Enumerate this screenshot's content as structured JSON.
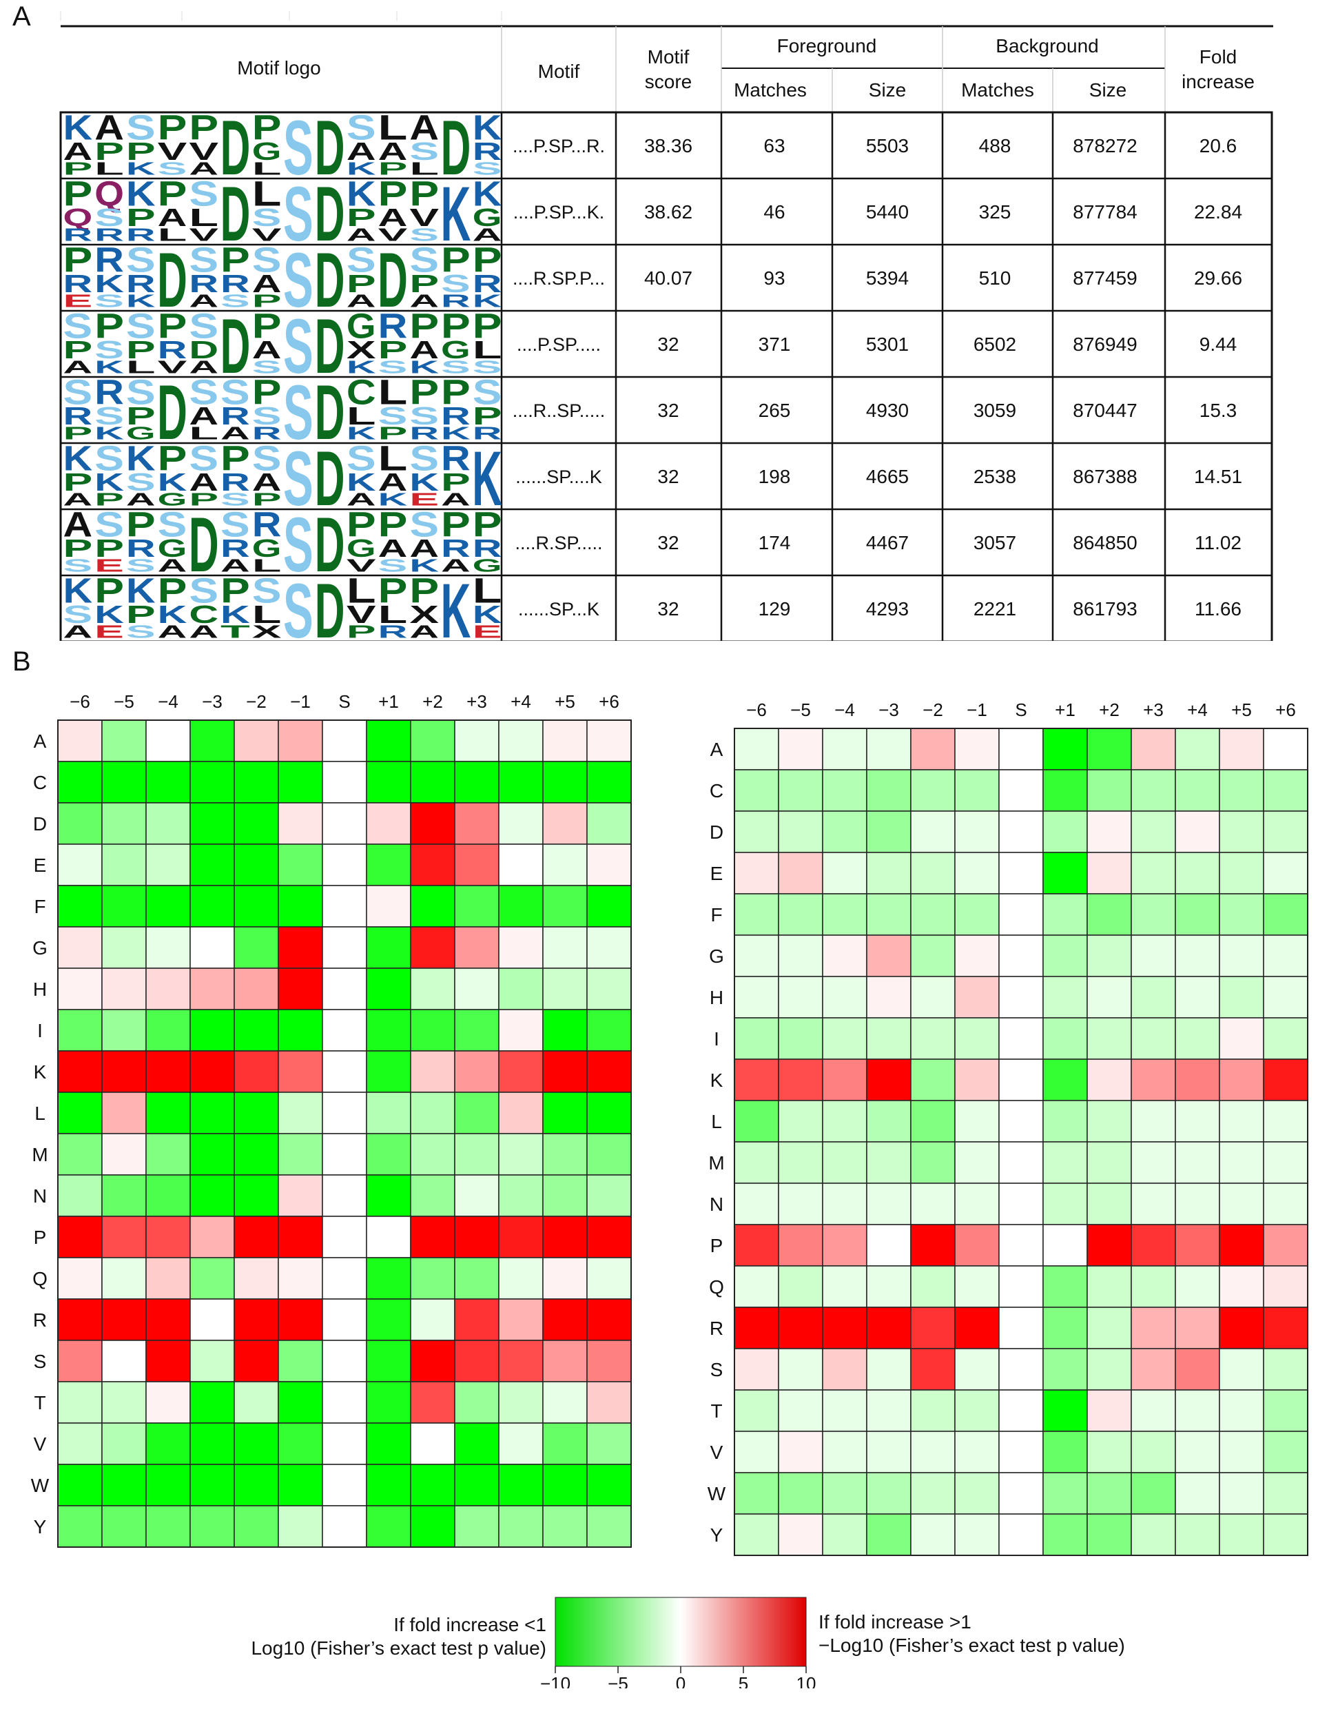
{
  "panel_a_label": "A",
  "panel_b_label": "B",
  "table": {
    "headers": {
      "logo": "Motif logo",
      "motif": "Motif",
      "score": [
        "Motif",
        "score"
      ],
      "foreground": "Foreground",
      "background": "Background",
      "matches": "Matches",
      "size": "Size",
      "fold": [
        "Fold",
        "increase"
      ]
    },
    "rows": [
      {
        "motif": "....P.SP...R.",
        "score": "38.36",
        "fg_matches": "63",
        "fg_size": "5503",
        "bg_matches": "488",
        "bg_size": "878272",
        "fold": "20.6"
      },
      {
        "motif": "....P.SP...K.",
        "score": "38.62",
        "fg_matches": "46",
        "fg_size": "5440",
        "bg_matches": "325",
        "bg_size": "877784",
        "fold": "22.84"
      },
      {
        "motif": "....R.SP.P...",
        "score": "40.07",
        "fg_matches": "93",
        "fg_size": "5394",
        "bg_matches": "510",
        "bg_size": "877459",
        "fold": "29.66"
      },
      {
        "motif": "....P.SP.....",
        "score": "32",
        "fg_matches": "371",
        "fg_size": "5301",
        "bg_matches": "6502",
        "bg_size": "876949",
        "fold": "9.44"
      },
      {
        "motif": "....R..SP.....",
        "score": "32",
        "fg_matches": "265",
        "fg_size": "4930",
        "bg_matches": "3059",
        "bg_size": "870447",
        "fold": "15.3"
      },
      {
        "motif": "......SP....K",
        "score": "32",
        "fg_matches": "198",
        "fg_size": "4665",
        "bg_matches": "2538",
        "bg_size": "867388",
        "fold": "14.51"
      },
      {
        "motif": "....R.SP.....",
        "score": "32",
        "fg_matches": "174",
        "fg_size": "4467",
        "bg_matches": "3057",
        "bg_size": "864850",
        "fold": "11.02"
      },
      {
        "motif": "......SP...K",
        "score": "32",
        "fg_matches": "129",
        "fg_size": "4293",
        "bg_matches": "2221",
        "bg_size": "861793",
        "fold": "11.66"
      }
    ],
    "logos": [
      [
        [
          "K",
          "A",
          "P"
        ],
        [
          "A",
          "P",
          "L"
        ],
        [
          "S",
          "P",
          "K"
        ],
        [
          "P",
          "V",
          "S"
        ],
        [
          "P",
          "V",
          "A"
        ],
        [
          "D"
        ],
        [
          "P",
          "G",
          "L"
        ],
        [
          "S"
        ],
        [
          "D"
        ],
        [
          "S",
          "A",
          "K"
        ],
        [
          "L",
          "A",
          "P"
        ],
        [
          "A",
          "S",
          "L"
        ],
        [
          "D"
        ],
        [
          "K",
          "R",
          "S"
        ]
      ],
      [
        [
          "P",
          "Q",
          "R"
        ],
        [
          "Q",
          "S",
          "R"
        ],
        [
          "K",
          "P",
          "R"
        ],
        [
          "P",
          "A",
          "L"
        ],
        [
          "S",
          "L",
          "V"
        ],
        [
          "D"
        ],
        [
          "L",
          "S",
          "V"
        ],
        [
          "S"
        ],
        [
          "D"
        ],
        [
          "K",
          "P",
          "A"
        ],
        [
          "P",
          "A",
          "V"
        ],
        [
          "P",
          "V",
          "S"
        ],
        [
          "K"
        ],
        [
          "K",
          "G",
          "A"
        ]
      ],
      [
        [
          "P",
          "R",
          "E"
        ],
        [
          "R",
          "K",
          "S"
        ],
        [
          "S",
          "R",
          "K"
        ],
        [
          "D"
        ],
        [
          "S",
          "R",
          "A"
        ],
        [
          "P",
          "R",
          "S"
        ],
        [
          "S",
          "A",
          "P"
        ],
        [
          "S"
        ],
        [
          "D"
        ],
        [
          "S",
          "P",
          "A"
        ],
        [
          "D"
        ],
        [
          "S",
          "P",
          "A"
        ],
        [
          "P",
          "S",
          "R"
        ],
        [
          "P",
          "R",
          "K"
        ]
      ],
      [
        [
          "S",
          "P",
          "A"
        ],
        [
          "P",
          "S",
          "K"
        ],
        [
          "S",
          "P",
          "L"
        ],
        [
          "P",
          "R",
          "V"
        ],
        [
          "S",
          "D",
          "A"
        ],
        [
          "D"
        ],
        [
          "P",
          "A",
          "S"
        ],
        [
          "S"
        ],
        [
          "D"
        ],
        [
          "G",
          "X",
          "K"
        ],
        [
          "R",
          "P",
          "S"
        ],
        [
          "P",
          "A",
          "K"
        ],
        [
          "P",
          "G",
          "S"
        ],
        [
          "P",
          "L",
          "S"
        ]
      ],
      [
        [
          "S",
          "R",
          "P"
        ],
        [
          "R",
          "S",
          "K"
        ],
        [
          "S",
          "P",
          "G"
        ],
        [
          "D"
        ],
        [
          "S",
          "A",
          "L"
        ],
        [
          "S",
          "R",
          "A"
        ],
        [
          "P",
          "S",
          "R"
        ],
        [
          "S"
        ],
        [
          "D"
        ],
        [
          "C",
          "L",
          "K"
        ],
        [
          "L",
          "S",
          "P"
        ],
        [
          "P",
          "S",
          "R"
        ],
        [
          "P",
          "R",
          "K"
        ],
        [
          "S",
          "P",
          "R"
        ]
      ],
      [
        [
          "K",
          "P",
          "A"
        ],
        [
          "S",
          "K",
          "P"
        ],
        [
          "K",
          "S",
          "A"
        ],
        [
          "P",
          "K",
          "G"
        ],
        [
          "S",
          "A",
          "P"
        ],
        [
          "P",
          "R",
          "S"
        ],
        [
          "S",
          "A",
          "P"
        ],
        [
          "S"
        ],
        [
          "D"
        ],
        [
          "S",
          "K",
          "A"
        ],
        [
          "L",
          "A",
          "K"
        ],
        [
          "S",
          "K",
          "E"
        ],
        [
          "R",
          "P",
          "A"
        ],
        [
          "K"
        ]
      ],
      [
        [
          "A",
          "P",
          "S"
        ],
        [
          "S",
          "P",
          "E"
        ],
        [
          "P",
          "R",
          "S"
        ],
        [
          "S",
          "G",
          "A"
        ],
        [
          "D"
        ],
        [
          "S",
          "R",
          "A"
        ],
        [
          "R",
          "G",
          "L"
        ],
        [
          "S"
        ],
        [
          "D"
        ],
        [
          "P",
          "G",
          "V"
        ],
        [
          "P",
          "A",
          "S"
        ],
        [
          "S",
          "A",
          "K"
        ],
        [
          "P",
          "R",
          "A"
        ],
        [
          "P",
          "R",
          "G"
        ]
      ],
      [
        [
          "K",
          "S",
          "A"
        ],
        [
          "P",
          "K",
          "E"
        ],
        [
          "K",
          "P",
          "S"
        ],
        [
          "P",
          "K",
          "A"
        ],
        [
          "S",
          "C",
          "A"
        ],
        [
          "P",
          "K",
          "T"
        ],
        [
          "S",
          "L",
          "X"
        ],
        [
          "S"
        ],
        [
          "D"
        ],
        [
          "L",
          "V",
          "P"
        ],
        [
          "P",
          "L",
          "R"
        ],
        [
          "P",
          "X",
          "A"
        ],
        [
          "K"
        ],
        [
          "L",
          "K",
          "E"
        ]
      ]
    ]
  },
  "heatmaps": {
    "columns": [
      "−6",
      "−5",
      "−4",
      "−3",
      "−2",
      "−1",
      "S",
      "+1",
      "+2",
      "+3",
      "+4",
      "+5",
      "+6"
    ],
    "rows": [
      "A",
      "C",
      "D",
      "E",
      "F",
      "G",
      "H",
      "I",
      "K",
      "L",
      "M",
      "N",
      "P",
      "Q",
      "R",
      "S",
      "T",
      "V",
      "W",
      "Y"
    ],
    "left_values": [
      [
        1,
        -4,
        0,
        -9,
        2,
        3,
        0,
        -10,
        -6,
        -1,
        -1,
        0.6,
        0.5
      ],
      [
        -10,
        -10,
        -10,
        -10,
        -10,
        -10,
        0,
        -10,
        -10,
        -10,
        -10,
        -10,
        -10
      ],
      [
        -6,
        -4,
        -3,
        -10,
        -10,
        1,
        0,
        1.5,
        10,
        5,
        -1,
        2,
        -3
      ],
      [
        -1,
        -3,
        -2,
        -10,
        -10,
        -6,
        0,
        -8,
        9,
        6,
        0,
        -1,
        0.5
      ],
      [
        -10,
        -9,
        -10,
        -10,
        -10,
        -10,
        0,
        0.5,
        -10,
        -7,
        -9,
        -7,
        -10
      ],
      [
        1,
        -2,
        -1,
        0,
        -7,
        10,
        0,
        -9,
        9,
        4,
        0.5,
        -1,
        -1
      ],
      [
        0.5,
        1,
        1.5,
        3,
        3.5,
        10,
        0,
        -10,
        -2,
        -1,
        -3,
        -2,
        -2
      ],
      [
        -6,
        -4,
        -7,
        -10,
        -10,
        -10,
        0,
        -9,
        -8,
        -7,
        0.5,
        -10,
        -8
      ],
      [
        10,
        10,
        10,
        10,
        8,
        6,
        0,
        -9,
        2,
        4,
        7,
        10,
        10
      ],
      [
        -10,
        3,
        -10,
        -10,
        -10,
        -2,
        0,
        -3,
        -3,
        -6,
        2,
        -10,
        -10
      ],
      [
        -5,
        0.5,
        -5,
        -10,
        -10,
        -4,
        0,
        -6,
        -3,
        -3,
        -2,
        -4,
        -5
      ],
      [
        -3,
        -6,
        -7,
        -10,
        -10,
        1.5,
        0,
        -10,
        -4,
        -1,
        -3,
        -4,
        -3
      ],
      [
        10,
        7,
        7,
        3,
        10,
        10,
        0,
        0,
        10,
        10,
        9,
        10,
        10
      ],
      [
        0.5,
        -1,
        2,
        -5,
        1,
        0.5,
        0,
        -9,
        -5,
        -5,
        -1,
        0.5,
        -1
      ],
      [
        10,
        10,
        10,
        0,
        10,
        10,
        0,
        -9,
        -1,
        8,
        3,
        10,
        10
      ],
      [
        5,
        0,
        10,
        -2,
        10,
        -5,
        0,
        -9,
        10,
        8,
        7,
        4,
        5
      ],
      [
        -2,
        -2,
        0.5,
        -10,
        -2,
        -10,
        0,
        -9,
        7,
        -4,
        -2,
        -1,
        2
      ],
      [
        -2,
        -3,
        -9,
        -10,
        -10,
        -8,
        0,
        -10,
        0,
        -10,
        -1,
        -6,
        -4
      ],
      [
        -10,
        -10,
        -10,
        -10,
        -10,
        -10,
        0,
        -10,
        -10,
        -10,
        -10,
        -10,
        -10
      ],
      [
        -6,
        -6,
        -6,
        -6,
        -6,
        -2,
        0,
        -8,
        -10,
        -4,
        -4,
        -4,
        -4
      ]
    ],
    "right_values": [
      [
        -1,
        0.5,
        -1,
        -1,
        3,
        0.5,
        0,
        -10,
        -8,
        2,
        -2,
        1,
        0
      ],
      [
        -3,
        -3,
        -3,
        -4,
        -3,
        -3,
        0,
        -8,
        -4,
        -3,
        -3,
        -3,
        -3
      ],
      [
        -2,
        -2,
        -3,
        -4,
        -1,
        -1,
        0,
        -3,
        0.5,
        -2,
        0.5,
        -2,
        -2
      ],
      [
        1,
        2,
        -1,
        -2,
        -2,
        -1,
        0,
        -10,
        1,
        -2,
        -2,
        -2,
        -1
      ],
      [
        -3,
        -3,
        -3,
        -3,
        -3,
        -3,
        0,
        -3,
        -5,
        -3,
        -4,
        -3,
        -5
      ],
      [
        -1,
        -1,
        0.5,
        3,
        -3,
        0.5,
        0,
        -3,
        -2,
        -1,
        -1,
        -1,
        -1
      ],
      [
        -1,
        -1,
        -1,
        0.5,
        -1,
        2,
        0,
        -2,
        -1,
        -2,
        -1,
        -2,
        -1
      ],
      [
        -3,
        -3,
        -2,
        -2,
        -2,
        -2,
        0,
        -3,
        -2,
        -2,
        -2,
        0.5,
        -2
      ],
      [
        7,
        7,
        5,
        10,
        -4,
        2,
        0,
        -8,
        1,
        4,
        5,
        4,
        9
      ],
      [
        -6,
        -2,
        -2,
        -3,
        -5,
        -1,
        0,
        -3,
        -2,
        -1,
        -1,
        -1,
        -1
      ],
      [
        -2,
        -2,
        -2,
        -2,
        -4,
        -1,
        0,
        -2,
        -2,
        -1,
        -1,
        -1,
        -1
      ],
      [
        -1,
        -1,
        -1,
        -1,
        -1,
        -1,
        0,
        -2,
        -2,
        -1,
        -1,
        -1,
        -1
      ],
      [
        8,
        5,
        4,
        0,
        10,
        5,
        0,
        0,
        10,
        8,
        6,
        10,
        4
      ],
      [
        -1,
        -2,
        -1,
        -1,
        -2,
        -1,
        0,
        -5,
        -2,
        -2,
        -1,
        0.5,
        1
      ],
      [
        10,
        10,
        10,
        10,
        8,
        10,
        0,
        -5,
        -2,
        3,
        3,
        10,
        9
      ],
      [
        1,
        -1,
        2,
        -1,
        8,
        -1,
        0,
        -4,
        -2,
        3,
        5,
        -1,
        -2
      ],
      [
        -2,
        -1,
        -1,
        -1,
        -2,
        -2,
        0,
        -10,
        1,
        -1,
        -1,
        -1,
        -3
      ],
      [
        -1,
        0.5,
        -1,
        -1,
        -1,
        -1,
        0,
        -6,
        -2,
        -2,
        -1,
        -1,
        -3
      ],
      [
        -4,
        -4,
        -3,
        -3,
        -2,
        -2,
        0,
        -4,
        -4,
        -5,
        -1,
        -1,
        -2
      ],
      [
        -2,
        0.5,
        -2,
        -5,
        -1,
        -1,
        0,
        -5,
        -5,
        -2,
        -2,
        -2,
        -2
      ]
    ]
  },
  "legend": {
    "left_line1": "If fold increase <1",
    "left_line2": "Log10 (Fisher’s exact test p value)",
    "right_line1": "If fold increase >1",
    "right_line2": "−Log10 (Fisher’s exact test p value)",
    "ticks": [
      "−10",
      "−5",
      "0",
      "5",
      "10"
    ],
    "range": [
      -10,
      10
    ]
  }
}
